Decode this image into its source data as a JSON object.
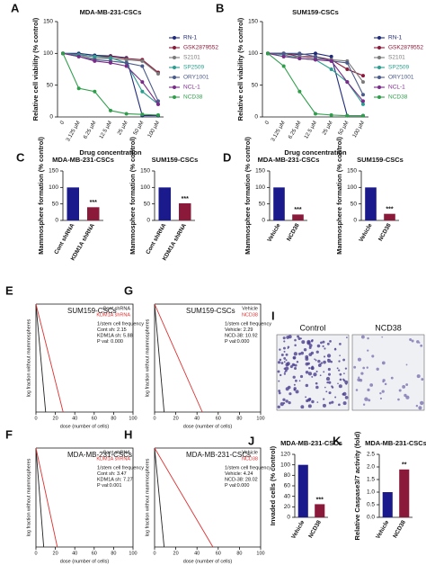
{
  "chart_data": [
    {
      "type": "line",
      "label": "A",
      "title": "MDA-MB-231-CSCs",
      "ylabel": "Relative cell viability (% control)",
      "xlabel": "Drug concentration",
      "categories": [
        "0",
        "3.125 μM",
        "6.25 μM",
        "12.5 μM",
        "25 μM",
        "50 μM",
        "100 μM"
      ],
      "ylim": [
        0,
        150
      ],
      "yticks": [
        0,
        50,
        100,
        150
      ],
      "series": [
        {
          "name": "RN-1",
          "color": "#1f2a7a",
          "values": [
            100,
            100,
            97,
            96,
            93,
            2,
            2
          ]
        },
        {
          "name": "GSK2879552",
          "color": "#8b1a3a",
          "values": [
            100,
            98,
            95,
            95,
            92,
            90,
            70
          ]
        },
        {
          "name": "S2101",
          "color": "#7a7a7a",
          "values": [
            100,
            97,
            92,
            92,
            90,
            88,
            68
          ]
        },
        {
          "name": "SP2509",
          "color": "#2a9d8f",
          "values": [
            100,
            98,
            95,
            93,
            85,
            40,
            20
          ]
        },
        {
          "name": "ORY1001",
          "color": "#4a5a8a",
          "values": [
            100,
            95,
            90,
            88,
            85,
            80,
            25
          ]
        },
        {
          "name": "NCL-1",
          "color": "#7b2a8a",
          "values": [
            100,
            95,
            88,
            85,
            80,
            55,
            20
          ]
        },
        {
          "name": "NCD38",
          "color": "#2e9e4a",
          "values": [
            100,
            45,
            40,
            10,
            5,
            4,
            3
          ]
        }
      ]
    },
    {
      "type": "line",
      "label": "B",
      "title": "SUM159-CSCs",
      "ylabel": "Relative cell viability (% control)",
      "xlabel": "Drug concentration",
      "categories": [
        "0",
        "3.125 μM",
        "6.25 μM",
        "12.5 μM",
        "25 μM",
        "50 μM",
        "100 μM"
      ],
      "ylim": [
        0,
        150
      ],
      "yticks": [
        0,
        50,
        100,
        150
      ],
      "series": [
        {
          "name": "RN-1",
          "color": "#1f2a7a",
          "values": [
            100,
            100,
            98,
            100,
            95,
            2,
            2
          ]
        },
        {
          "name": "GSK2879552",
          "color": "#8b1a3a",
          "values": [
            100,
            100,
            95,
            95,
            90,
            75,
            65
          ]
        },
        {
          "name": "S2101",
          "color": "#7a7a7a",
          "values": [
            100,
            95,
            95,
            92,
            90,
            88,
            55
          ]
        },
        {
          "name": "SP2509",
          "color": "#2a9d8f",
          "values": [
            100,
            98,
            92,
            90,
            75,
            55,
            20
          ]
        },
        {
          "name": "ORY1001",
          "color": "#4a5a8a",
          "values": [
            100,
            100,
            100,
            95,
            88,
            85,
            35
          ]
        },
        {
          "name": "NCL-1",
          "color": "#7b2a8a",
          "values": [
            100,
            95,
            92,
            90,
            88,
            55,
            25
          ]
        },
        {
          "name": "NCD38",
          "color": "#2e9e4a",
          "values": [
            100,
            80,
            40,
            5,
            3,
            2,
            2
          ]
        }
      ]
    },
    {
      "type": "bar",
      "label": "C",
      "title": "MDA-MB-231-CSCs",
      "ylabel": "Mammosphere formation (% control)",
      "categories": [
        "Cont shRNA",
        "KDM1A shRNA"
      ],
      "values": [
        100,
        40
      ],
      "colors": [
        "#1a1a8c",
        "#8b1a3a"
      ],
      "significance": "***",
      "ylim": [
        0,
        150
      ],
      "yticks": [
        0,
        50,
        100,
        150
      ]
    },
    {
      "type": "bar",
      "title": "SUM159-CSCs",
      "ylabel": "Mammosphere formation (% control)",
      "categories": [
        "Cont shRNA",
        "KDM1A shRNA"
      ],
      "values": [
        100,
        52
      ],
      "colors": [
        "#1a1a8c",
        "#8b1a3a"
      ],
      "significance": "***",
      "ylim": [
        0,
        150
      ],
      "yticks": [
        0,
        50,
        100,
        150
      ]
    },
    {
      "type": "bar",
      "label": "D",
      "title": "MDA-MB-231-CSCs",
      "ylabel": "Mammosphere formation (% control)",
      "categories": [
        "Vehicle",
        "NCD38"
      ],
      "values": [
        100,
        18
      ],
      "colors": [
        "#1a1a8c",
        "#8b1a3a"
      ],
      "significance": "***",
      "ylim": [
        0,
        150
      ],
      "yticks": [
        0,
        50,
        100,
        150
      ]
    },
    {
      "type": "bar",
      "title": "SUM159-CSCs",
      "ylabel": "Mammosphere formation (% control)",
      "categories": [
        "Vehicle",
        "NCD38"
      ],
      "values": [
        100,
        20
      ],
      "colors": [
        "#1a1a8c",
        "#8b1a3a"
      ],
      "significance": "***",
      "ylim": [
        0,
        150
      ],
      "yticks": [
        0,
        50,
        100,
        150
      ]
    },
    {
      "type": "elda",
      "label": "E",
      "title": "SUM159-CSCs",
      "ylabel": "log fraction without mammospheres",
      "xlabel": "dose (number of cells)",
      "xlim": [
        0,
        100
      ],
      "xticks": [
        0,
        20,
        40,
        60,
        80,
        100
      ],
      "ylim": [
        -5,
        0
      ],
      "series": [
        {
          "name": "Cont shRNA",
          "color": "#222222",
          "x": [
            0,
            10
          ],
          "values": [
            0,
            -5
          ]
        },
        {
          "name": "KDM1A shRNA",
          "color": "#e03030",
          "x": [
            0,
            28
          ],
          "values": [
            0,
            -5
          ]
        }
      ],
      "notes": [
        "1/stem cell frequency",
        "Cont sh: 2.15",
        "KDM1A sh: 5.88",
        "P val: 0.000"
      ]
    },
    {
      "type": "elda",
      "label": "F",
      "title": "MDA-MB-231-CSCs",
      "ylabel": "log fraction without mammospheres",
      "xlabel": "dose (number of cells)",
      "xlim": [
        0,
        100
      ],
      "xticks": [
        0,
        20,
        40,
        60,
        80,
        100
      ],
      "ylim": [
        -5,
        0
      ],
      "series": [
        {
          "name": "Cont shRNA",
          "color": "#222222",
          "x": [
            0,
            8
          ],
          "values": [
            0,
            -5
          ]
        },
        {
          "name": "KDM1A shRNA",
          "color": "#e03030",
          "x": [
            0,
            22
          ],
          "values": [
            0,
            -5
          ]
        }
      ],
      "notes": [
        "1/stem cell frequency",
        "Cont sh: 3.47",
        "KDM1A sh: 7.27",
        "P val:0.001"
      ]
    },
    {
      "type": "elda",
      "label": "G",
      "title": "SUM159-CSCs",
      "ylabel": "log fraction without mammospheres",
      "xlabel": "dose (number of cells)",
      "xlim": [
        0,
        100
      ],
      "xticks": [
        0,
        20,
        40,
        60,
        80,
        100
      ],
      "ylim": [
        -5,
        0
      ],
      "series": [
        {
          "name": "Vehicle",
          "color": "#222222",
          "x": [
            0,
            9
          ],
          "values": [
            0,
            -5
          ]
        },
        {
          "name": "NCD38",
          "color": "#e03030",
          "x": [
            0,
            45
          ],
          "values": [
            0,
            -5
          ]
        }
      ],
      "notes": [
        "1/stem cell frequency",
        "Vehicle: 2.29",
        "NCD-38: 10.92",
        "P val:0.000"
      ]
    },
    {
      "type": "elda",
      "label": "H",
      "title": "MDA-MB-231-CSCs",
      "ylabel": "log fraction without mammospheres",
      "xlabel": "dose (number of cells)",
      "xlim": [
        0,
        100
      ],
      "xticks": [
        0,
        20,
        40,
        60,
        80,
        100
      ],
      "ylim": [
        -5,
        0
      ],
      "series": [
        {
          "name": "Vehicle",
          "color": "#222222",
          "x": [
            0,
            9
          ],
          "values": [
            0,
            -5
          ]
        },
        {
          "name": "NCD38",
          "color": "#e03030",
          "x": [
            0,
            55
          ],
          "values": [
            0,
            -5
          ]
        }
      ],
      "notes": [
        "1/stem cell frequency",
        "Vehicle: 4.24",
        "NCD-38: 28.02",
        "P val:0.000"
      ]
    },
    {
      "type": "bar",
      "label": "J",
      "title": "MDA-MB-231-CSCs",
      "ylabel": "Invaded cells (% control)",
      "categories": [
        "Vehicle",
        "NCD38"
      ],
      "values": [
        100,
        25
      ],
      "colors": [
        "#1a1a8c",
        "#8b1a3a"
      ],
      "significance": "***",
      "ylim": [
        0,
        120
      ],
      "yticks": [
        0,
        20,
        40,
        60,
        80,
        100,
        120
      ]
    },
    {
      "type": "bar",
      "label": "K",
      "title": "MDA-MB-231-CSCs",
      "ylabel": "Relative Caspase3/7 activity (fold)",
      "categories": [
        "Vehicle",
        "NCD38"
      ],
      "values": [
        1,
        1.9
      ],
      "colors": [
        "#1a1a8c",
        "#8b1a3a"
      ],
      "significance": "**",
      "ylim": [
        0,
        2.5
      ],
      "yticks": [
        {
          "value": 0,
          "label": "0.0"
        },
        {
          "value": 0.5,
          "label": "0.5"
        },
        {
          "value": 1,
          "label": "1.0"
        },
        {
          "value": 1.5,
          "label": "1.5"
        },
        {
          "value": 2,
          "label": "2.0"
        },
        {
          "value": 2.5,
          "label": "2.5"
        }
      ]
    }
  ],
  "image_panel": {
    "label": "I",
    "images": [
      "Control",
      "NCD38"
    ]
  }
}
